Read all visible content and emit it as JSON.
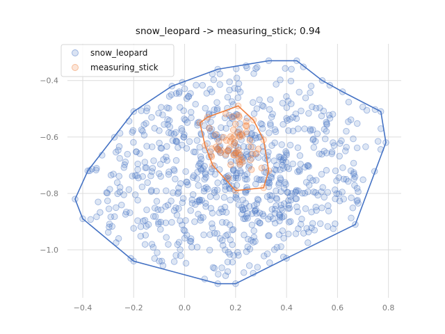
{
  "chart_data": {
    "type": "scatter",
    "title": "snow_leopard -> measuring_stick; 0.94",
    "xlim": [
      -0.46,
      0.85
    ],
    "ylim": [
      -1.17,
      -0.27
    ],
    "x_ticks": [
      -0.4,
      -0.2,
      0.0,
      0.2,
      0.4,
      0.6,
      0.8
    ],
    "x_tick_labels": [
      "−0.4",
      "−0.2",
      "0.0",
      "0.2",
      "0.4",
      "0.6",
      "0.8"
    ],
    "y_ticks": [
      -0.4,
      -0.6,
      -0.8,
      -1.0
    ],
    "y_tick_labels": [
      "−0.4",
      "−0.6",
      "−0.8",
      "−1.0"
    ],
    "grid": true,
    "legend_position": "top-left",
    "series": [
      {
        "name": "snow_leopard",
        "color": "#4472c4",
        "marker": "circle-outline-filled-translucent",
        "point_count": 800,
        "hull": [
          [
            -0.43,
            -0.82
          ],
          [
            -0.38,
            -0.72
          ],
          [
            -0.2,
            -0.51
          ],
          [
            -0.05,
            -0.42
          ],
          [
            0.13,
            -0.36
          ],
          [
            0.33,
            -0.33
          ],
          [
            0.44,
            -0.33
          ],
          [
            0.54,
            -0.4
          ],
          [
            0.62,
            -0.44
          ],
          [
            0.77,
            -0.51
          ],
          [
            0.79,
            -0.62
          ],
          [
            0.67,
            -0.91
          ],
          [
            0.4,
            -1.03
          ],
          [
            0.2,
            -1.12
          ],
          [
            0.13,
            -1.12
          ],
          [
            -0.2,
            -1.04
          ],
          [
            -0.4,
            -0.89
          ]
        ]
      },
      {
        "name": "measuring_stick",
        "color": "#f07f3c",
        "marker": "circle-outline-filled-translucent",
        "point_count": 60,
        "hull": [
          [
            0.06,
            -0.55
          ],
          [
            0.09,
            -0.53
          ],
          [
            0.21,
            -0.49
          ],
          [
            0.27,
            -0.54
          ],
          [
            0.31,
            -0.61
          ],
          [
            0.33,
            -0.72
          ],
          [
            0.31,
            -0.78
          ],
          [
            0.2,
            -0.79
          ],
          [
            0.11,
            -0.7
          ],
          [
            0.08,
            -0.63
          ]
        ]
      }
    ]
  }
}
